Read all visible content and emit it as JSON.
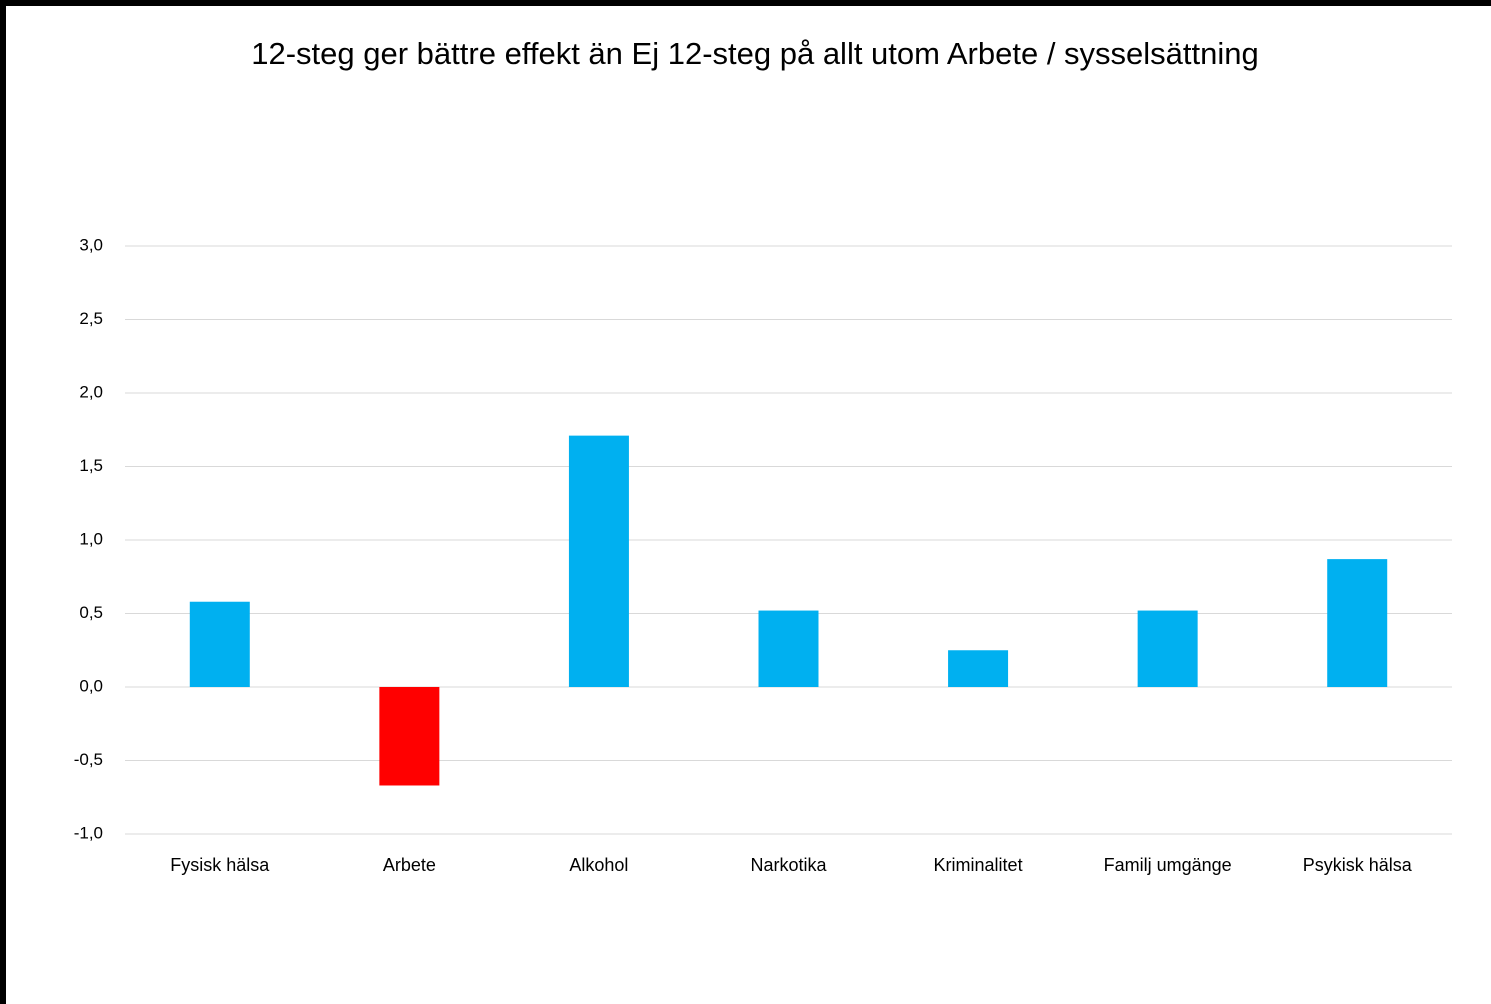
{
  "chart_data": {
    "type": "bar",
    "title": "12-steg ger bättre effekt än Ej 12-steg på allt utom Arbete / sysselsättning",
    "categories": [
      "Fysisk hälsa",
      "Arbete",
      "Alkohol",
      "Narkotika",
      "Kriminalitet",
      "Familj umgänge",
      "Psykisk hälsa"
    ],
    "values": [
      0.58,
      -0.67,
      1.71,
      0.52,
      0.25,
      0.52,
      0.87
    ],
    "colors": [
      "#00b0f0",
      "#ff0000",
      "#00b0f0",
      "#00b0f0",
      "#00b0f0",
      "#00b0f0",
      "#00b0f0"
    ],
    "ylim": [
      -1,
      3
    ],
    "yticks": [
      {
        "value": -1,
        "label": "-1,0"
      },
      {
        "value": -0.5,
        "label": "-0,5"
      },
      {
        "value": 0,
        "label": "0,0"
      },
      {
        "value": 0.5,
        "label": "0,5"
      },
      {
        "value": 1,
        "label": "1,0"
      },
      {
        "value": 1.5,
        "label": "1,5"
      },
      {
        "value": 2,
        "label": "2,0"
      },
      {
        "value": 2.5,
        "label": "2,5"
      },
      {
        "value": 3,
        "label": "3,0"
      }
    ],
    "grid": true
  }
}
